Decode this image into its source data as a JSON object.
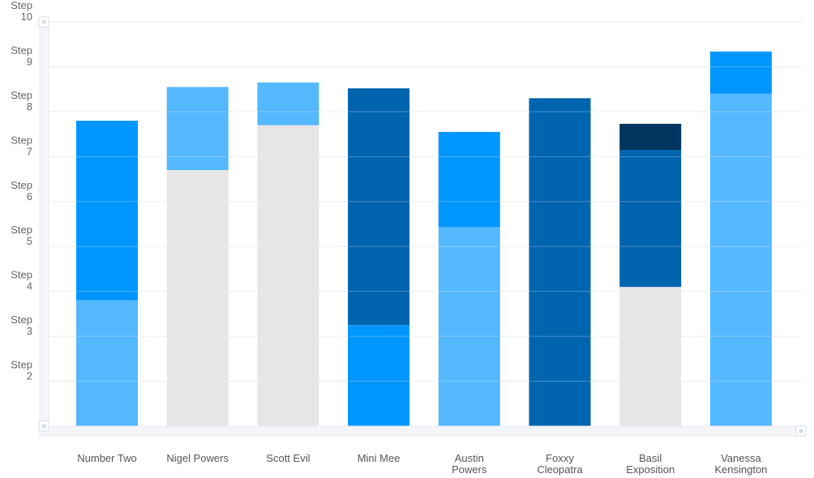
{
  "chart_data": {
    "type": "bar",
    "stacked": true,
    "categories": [
      "Number Two",
      "Nigel Powers",
      "Scott Evil",
      "Mini Mee",
      "Austin Powers",
      "Foxxy Cleopatra",
      "Basil Exposition",
      "Vanessa Kensington"
    ],
    "category_lines": [
      [
        "Number Two"
      ],
      [
        "Nigel Powers"
      ],
      [
        "Scott Evil"
      ],
      [
        "Mini Mee"
      ],
      [
        "Austin",
        "Powers"
      ],
      [
        "Foxxy",
        "Cleopatra"
      ],
      [
        "Basil",
        "Exposition"
      ],
      [
        "Vanessa",
        "Kensington"
      ]
    ],
    "y_ticks": [
      {
        "value": 2,
        "lines": [
          "Step",
          "2"
        ]
      },
      {
        "value": 3,
        "lines": [
          "Step",
          "3"
        ]
      },
      {
        "value": 4,
        "lines": [
          "Step",
          "4"
        ]
      },
      {
        "value": 5,
        "lines": [
          "Step",
          "5"
        ]
      },
      {
        "value": 6,
        "lines": [
          "Step",
          "6"
        ]
      },
      {
        "value": 7,
        "lines": [
          "Step",
          "7"
        ]
      },
      {
        "value": 8,
        "lines": [
          "Step",
          "8"
        ]
      },
      {
        "value": 9,
        "lines": [
          "Step",
          "9"
        ]
      },
      {
        "value": 10,
        "lines": [
          "Step",
          "10"
        ]
      }
    ],
    "ylim": [
      1,
      10
    ],
    "grid": true,
    "legend": "none",
    "title": "",
    "xlabel": "",
    "ylabel": "",
    "bars": [
      {
        "category": "Number Two",
        "segments": [
          {
            "value": 2.8,
            "color": "#54b8ff"
          },
          {
            "value": 4.0,
            "color": "#0096ff"
          }
        ]
      },
      {
        "category": "Nigel Powers",
        "segments": [
          {
            "value": 5.7,
            "color": "#e6e6e6"
          },
          {
            "value": 1.85,
            "color": "#54b8ff"
          }
        ]
      },
      {
        "category": "Scott Evil",
        "segments": [
          {
            "value": 6.7,
            "color": "#e6e6e6"
          },
          {
            "value": 0.95,
            "color": "#54b8ff"
          }
        ]
      },
      {
        "category": "Mini Mee",
        "segments": [
          {
            "value": 2.25,
            "color": "#0096ff"
          },
          {
            "value": 5.27,
            "color": "#0064ae"
          }
        ]
      },
      {
        "category": "Austin Powers",
        "segments": [
          {
            "value": 4.43,
            "color": "#54b8ff"
          },
          {
            "value": 2.12,
            "color": "#0096ff"
          }
        ]
      },
      {
        "category": "Foxxy Cleopatra",
        "segments": [
          {
            "value": 7.3,
            "color": "#0064ae"
          }
        ]
      },
      {
        "category": "Basil Exposition",
        "segments": [
          {
            "value": 3.1,
            "color": "#e6e6e6"
          },
          {
            "value": 3.05,
            "color": "#0064ae"
          },
          {
            "value": 0.58,
            "color": "#003560"
          }
        ]
      },
      {
        "category": "Vanessa Kensington",
        "segments": [
          {
            "value": 7.4,
            "color": "#54b8ff"
          },
          {
            "value": 0.94,
            "color": "#0096ff"
          }
        ]
      }
    ],
    "colors": {
      "grid": "#eeeeee",
      "axis_frame": "#e8ecf2",
      "handle": "#d8dde6"
    }
  }
}
